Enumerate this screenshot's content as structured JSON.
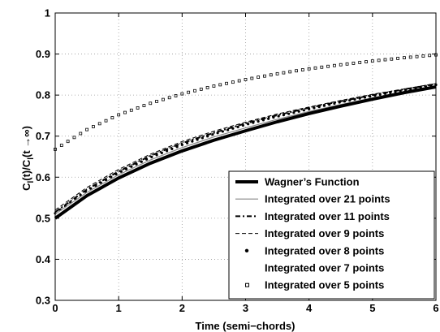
{
  "chart_data": {
    "type": "line",
    "xlabel": "Time (semi−chords)",
    "ylabel_main": "C",
    "ylabel_sub1": "l",
    "ylabel_mid": "(t)/C",
    "ylabel_sub2": "l",
    "ylabel_end": "(t →∞)",
    "xlim": [
      0,
      6
    ],
    "ylim": [
      0.3,
      1
    ],
    "x_ticks": [
      0,
      1,
      2,
      3,
      4,
      5,
      6
    ],
    "x_tick_labels": [
      "0",
      "1",
      "2",
      "3",
      "4",
      "5",
      "6"
    ],
    "y_ticks": [
      0.3,
      0.4,
      0.5,
      0.6,
      0.7,
      0.8,
      0.9,
      1
    ],
    "y_tick_labels": [
      "0.3",
      "0.4",
      "0.5",
      "0.6",
      "0.7",
      "0.8",
      "0.9",
      "1"
    ],
    "grid": true,
    "legend_position": "bottom-right",
    "x": [
      0,
      0.5,
      1,
      1.5,
      2,
      2.5,
      3,
      3.5,
      4,
      4.5,
      5,
      5.5,
      6
    ],
    "series": [
      {
        "name": "Wagner’s Function",
        "style": "thick-solid",
        "values": [
          0.5,
          0.555,
          0.598,
          0.634,
          0.664,
          0.69,
          0.713,
          0.735,
          0.755,
          0.773,
          0.79,
          0.806,
          0.82
        ]
      },
      {
        "name": "Integrated over 21 points",
        "style": "thin-solid-gray",
        "values": [
          0.51,
          0.563,
          0.606,
          0.642,
          0.672,
          0.698,
          0.72,
          0.741,
          0.76,
          0.777,
          0.793,
          0.808,
          0.822
        ]
      },
      {
        "name": "Integrated over 11 points",
        "style": "dash-dot",
        "values": [
          0.515,
          0.57,
          0.614,
          0.652,
          0.683,
          0.708,
          0.731,
          0.751,
          0.769,
          0.785,
          0.8,
          0.814,
          0.827
        ]
      },
      {
        "name": "Integrated over 9 points",
        "style": "dashed",
        "values": [
          0.52,
          0.575,
          0.619,
          0.656,
          0.687,
          0.712,
          0.734,
          0.754,
          0.771,
          0.787,
          0.802,
          0.815,
          0.828
        ]
      },
      {
        "name": "Integrated over 8 points",
        "style": "dots-large",
        "values": [
          0.512,
          0.567,
          0.611,
          0.648,
          0.679,
          0.705,
          0.728,
          0.748,
          0.766,
          0.783,
          0.798,
          0.812,
          0.825
        ]
      },
      {
        "name": "Integrated over 7 points",
        "style": "dots-small",
        "values": [
          0.517,
          0.572,
          0.616,
          0.653,
          0.684,
          0.709,
          0.732,
          0.752,
          0.77,
          0.786,
          0.801,
          0.815,
          0.828
        ]
      },
      {
        "name": "Integrated over 5 points",
        "style": "squares",
        "values": [
          0.668,
          0.716,
          0.752,
          0.78,
          0.803,
          0.822,
          0.838,
          0.852,
          0.864,
          0.874,
          0.883,
          0.891,
          0.898
        ]
      }
    ]
  }
}
